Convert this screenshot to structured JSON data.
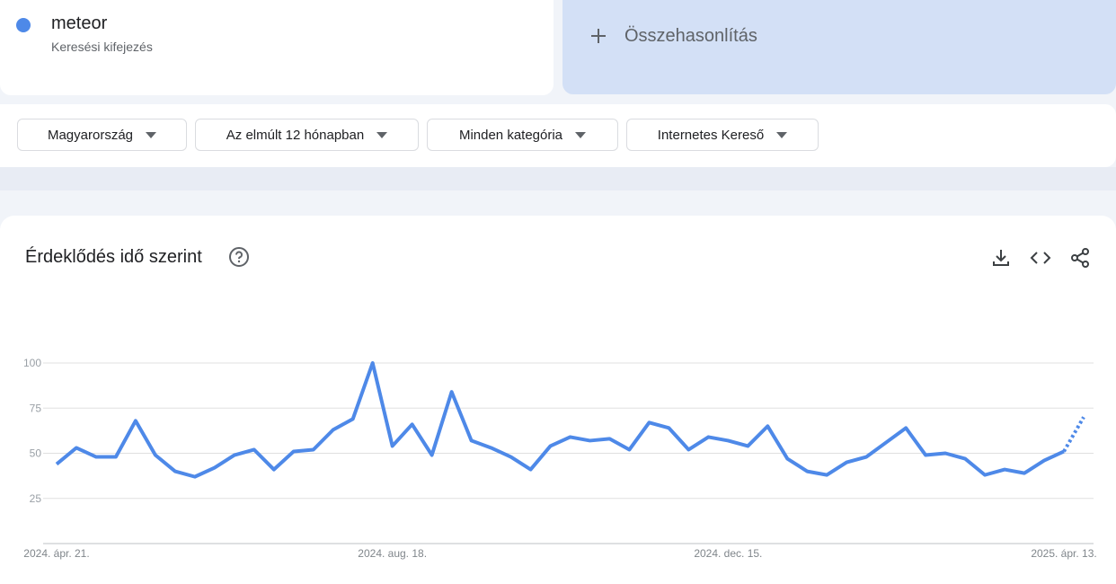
{
  "search_term": {
    "name": "meteor",
    "subtitle": "Keresési kifejezés",
    "color": "#4e89e8"
  },
  "compare_button": "Összehasonlítás",
  "filters": [
    "Magyarország",
    "Az elmúlt 12 hónapban",
    "Minden kategória",
    "Internetes Kereső"
  ],
  "chart_data": {
    "type": "line",
    "title": "Érdeklődés idő szerint",
    "categories": [
      "2024. ápr. 21.",
      null,
      null,
      null,
      null,
      null,
      null,
      null,
      null,
      null,
      null,
      null,
      null,
      null,
      null,
      null,
      null,
      "2024. aug. 18.",
      null,
      null,
      null,
      null,
      null,
      null,
      null,
      null,
      null,
      null,
      null,
      null,
      null,
      null,
      null,
      null,
      "2024. dec. 15.",
      null,
      null,
      null,
      null,
      null,
      null,
      null,
      null,
      null,
      null,
      null,
      null,
      null,
      null,
      null,
      null,
      "2025. ápr. 13.",
      null
    ],
    "series": [
      {
        "name": "meteor",
        "color": "#4e89e8",
        "values": [
          44,
          53,
          48,
          48,
          68,
          49,
          40,
          37,
          42,
          49,
          52,
          41,
          51,
          52,
          63,
          69,
          100,
          54,
          66,
          49,
          84,
          57,
          53,
          48,
          41,
          54,
          59,
          57,
          58,
          52,
          67,
          64,
          52,
          59,
          57,
          54,
          65,
          47,
          40,
          38,
          45,
          48,
          56,
          64,
          49,
          50,
          47,
          38,
          41,
          39,
          46,
          51,
          70
        ]
      }
    ],
    "last_point_partial": true,
    "ylim": [
      0,
      100
    ],
    "yticks": [
      25,
      50,
      75,
      100
    ],
    "grid": true
  }
}
